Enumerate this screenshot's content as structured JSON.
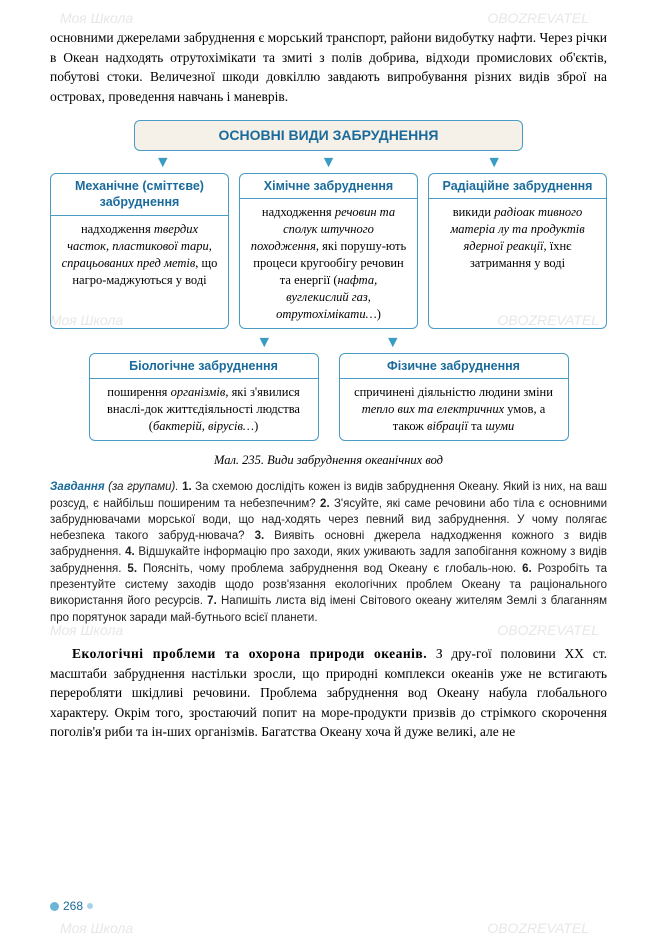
{
  "watermarks": {
    "left": "Моя Школа",
    "right": "OBOZREVATEL"
  },
  "intro": "основними джерелами забруднення є морський транспорт, райони видобутку нафти. Через річки в Океан надходять отрутохімікати та змиті з полів добрива, відходи промислових об'єктів, побутові стоки. Величезної шкоди довкіллю завдають випробування різних видів зброї на островах, проведення навчань і маневрів.",
  "diagram": {
    "title": "ОСНОВНІ ВИДИ ЗАБРУДНЕННЯ",
    "row1": [
      {
        "head": "Механічне (сміттєве) забруднення",
        "body": "надходження <em>твердих часток, пластикової тари, спрацьованих пред метів</em>, що нагро-маджуються у воді"
      },
      {
        "head": "Хімічне забруднення",
        "body": "надходження <em>речовин та сполук штучного походження</em>, які порушу-ють процеси кругообігу речовин та енергії (<em>нафта, вуглекислий газ, отрутохімікати…</em>)"
      },
      {
        "head": "Радіаційне забруднення",
        "body": "викиди <em>радіоак тивного матеріа лу та продуктів ядерної реакції</em>, їхнє затримання у воді"
      }
    ],
    "row2": [
      {
        "head": "Біологічне забруднення",
        "body": "поширення <em>організмів</em>, які з'явилися внаслі-док життєдіяльності людства (<em>бактерій, вірусів…</em>)"
      },
      {
        "head": "Фізичне забруднення",
        "body": "спричинені діяльністю людини зміни <em>тепло вих та електричних</em> умов, а також <em>вібрації</em> та <em>шуми</em>"
      }
    ]
  },
  "caption": "Мал. 235. Види забруднення океанічних вод",
  "tasks": {
    "lead": "Завдання",
    "groups": "(за групами).",
    "body": " <b>1.</b> За схемою дослідіть кожен із видів забруднення Океану. Який із них, на ваш розсуд, є найбільш поширеним та небезпечним? <b>2.</b> З'ясуйте, які саме речовини або тіла є основними забруднювачами морської води, що над-ходять через певний вид забруднення. У чому полягає небезпека такого забруд-нювача? <b>3.</b> Виявіть основні джерела надходження кожного з видів забруднення. <b>4.</b> Відшукайте інформацію про заходи, яких уживають задля запобігання кожному з видів забруднення. <b>5.</b> Поясніть, чому проблема забруднення вод Океану є глобаль-ною. <b>6.</b> Розробіть та презентуйте систему заходів щодо розв'язання екологічних проблем Океану та раціонального використання його ресурсів. <b>7.</b> Напишіть листа від імені Світового океану жителям Землі з благанням про порятунок заради май-бутнього всієї планети."
  },
  "conclusion": {
    "heading": "Екологічні проблеми та охорона природи океанів.",
    "text": " З дру-гої половини XX ст. масштаби забруднення настільки зросли, що природні комплекси океанів уже не встигають переробляти шкідливі речовини. Проблема забруднення вод Океану набула глобального характеру. Окрім того, зростаючий попит на море-продукти призвів до стрімкого скорочення поголів'я риби та ін-ших організмів. Багатства Океану хоча й дуже великі, але не"
  },
  "pageNumber": "268"
}
